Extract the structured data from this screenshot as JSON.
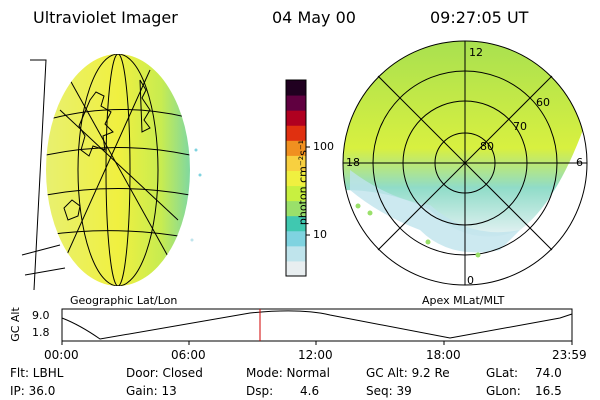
{
  "header": {
    "instrument": "Ultraviolet Imager",
    "date": "04 May 00",
    "time": "09:27:05 UT"
  },
  "left_panel": {
    "label": "Geographic Lat/Lon"
  },
  "right_panel": {
    "label": "Apex MLat/MLT",
    "mlt_labels": [
      "12",
      "18",
      "6",
      "0"
    ],
    "lat_labels": [
      "60",
      "70",
      "80"
    ]
  },
  "colorbar": {
    "unit_label": "photon cm⁻²s⁻¹",
    "ticks": [
      "100",
      "10"
    ],
    "colors": [
      "#e8eef0",
      "#bfe4ec",
      "#7fd3e0",
      "#40c8b0",
      "#9ae06a",
      "#c8f040",
      "#f0f040",
      "#f8d040",
      "#f09020",
      "#e03010",
      "#b00020",
      "#600040",
      "#200020"
    ]
  },
  "timeline": {
    "y_label": "GC Alt",
    "y_ticks": [
      "9.0",
      "1.8"
    ],
    "x_ticks": [
      "00:00",
      "06:00",
      "12:00",
      "18:00",
      "23:59"
    ],
    "marker_time": "09:27:05"
  },
  "status": {
    "flt": "Flt: LBHL",
    "door": "Door: Closed",
    "mode": "Mode: Normal",
    "gcalt": "GC Alt: 9.2 Re",
    "glat_label": "GLat:",
    "glat": "74.0",
    "ip": "IP: 36.0",
    "gain": "Gain: 13",
    "dsp_label": "Dsp:",
    "dsp": "4.6",
    "seq": "Seq: 39",
    "glon_label": "GLon:",
    "glon": "16.5"
  }
}
